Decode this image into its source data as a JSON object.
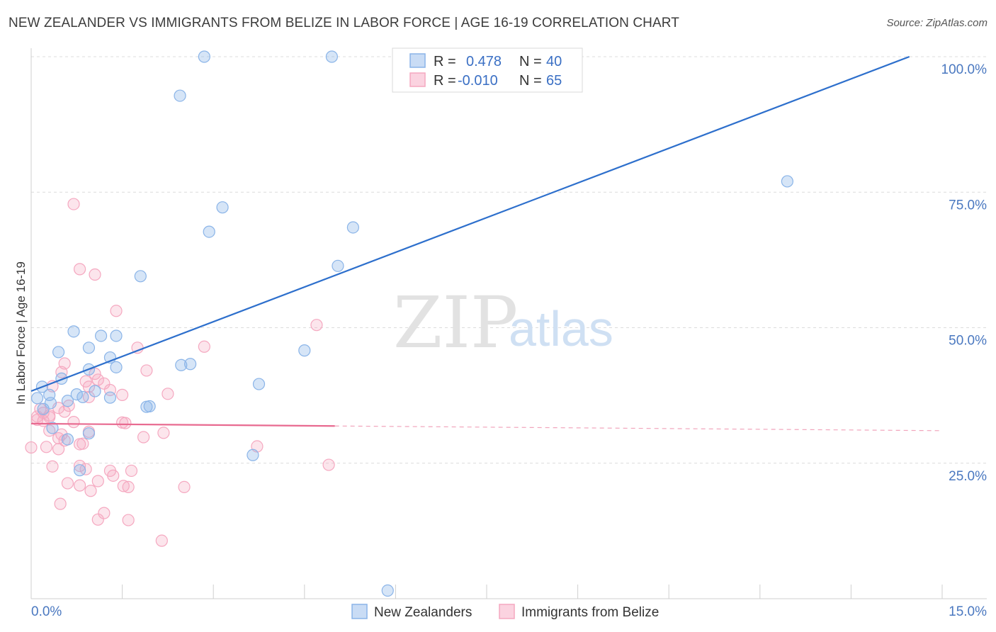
{
  "chart_data": {
    "type": "scatter",
    "title": "NEW ZEALANDER VS IMMIGRANTS FROM BELIZE IN LABOR FORCE | AGE 16-19 CORRELATION CHART",
    "source": "Source: ZipAtlas.com",
    "xlabel": "",
    "ylabel": "In Labor Force | Age 16-19",
    "xlim": [
      0,
      15
    ],
    "ylim": [
      0,
      100
    ],
    "x_tick_labels": [
      "0.0%",
      "15.0%"
    ],
    "y_ticks": [
      25,
      50,
      75,
      100
    ],
    "y_tick_labels": [
      "25.0%",
      "50.0%",
      "75.0%",
      "100.0%"
    ],
    "watermark": {
      "zip": "ZIP",
      "atlas": "atlas"
    },
    "legend": [
      {
        "r_label": "R =",
        "r_value": "0.478",
        "n_label": "N =",
        "n_value": "40"
      },
      {
        "r_label": "R =",
        "r_value": "-0.010",
        "n_label": "N =",
        "n_value": "65"
      }
    ],
    "series": [
      {
        "name": "New Zealanders",
        "color": "#8ab4e8",
        "line_color": "#2d6fcc",
        "trend": {
          "x0": 0.0,
          "y0": 38.3,
          "x1": 14.46,
          "y1": 100.0,
          "solid_until": 14.46
        },
        "points": [
          [
            2.85,
            100.0
          ],
          [
            4.95,
            100.0
          ],
          [
            2.45,
            92.8
          ],
          [
            12.45,
            77.0
          ],
          [
            3.15,
            72.2
          ],
          [
            2.93,
            67.7
          ],
          [
            5.3,
            68.5
          ],
          [
            5.05,
            61.4
          ],
          [
            1.8,
            59.5
          ],
          [
            0.7,
            49.3
          ],
          [
            1.15,
            48.5
          ],
          [
            1.4,
            48.5
          ],
          [
            0.95,
            46.3
          ],
          [
            0.45,
            45.5
          ],
          [
            1.3,
            44.5
          ],
          [
            4.5,
            45.8
          ],
          [
            2.62,
            43.3
          ],
          [
            2.47,
            43.1
          ],
          [
            0.95,
            42.3
          ],
          [
            1.4,
            42.7
          ],
          [
            0.5,
            40.6
          ],
          [
            3.75,
            39.6
          ],
          [
            0.18,
            39.1
          ],
          [
            0.3,
            37.6
          ],
          [
            0.75,
            37.7
          ],
          [
            1.05,
            38.3
          ],
          [
            0.85,
            37.2
          ],
          [
            1.3,
            37.1
          ],
          [
            0.1,
            37.0
          ],
          [
            0.32,
            36.1
          ],
          [
            1.9,
            35.4
          ],
          [
            1.95,
            35.5
          ],
          [
            0.35,
            31.5
          ],
          [
            0.95,
            30.5
          ],
          [
            0.6,
            29.4
          ],
          [
            3.65,
            26.5
          ],
          [
            0.8,
            23.7
          ],
          [
            0.2,
            35.0
          ],
          [
            0.6,
            36.5
          ],
          [
            5.87,
            1.5
          ]
        ]
      },
      {
        "name": "Immigrants from Belize",
        "color": "#f5a8c0",
        "line_color": "#e86a90",
        "trend": {
          "x0": 0.0,
          "y0": 32.3,
          "x1": 15.0,
          "y1": 31.0,
          "solid_until": 5.0
        },
        "points": [
          [
            0.7,
            72.8
          ],
          [
            0.8,
            60.8
          ],
          [
            1.05,
            59.8
          ],
          [
            1.4,
            53.1
          ],
          [
            4.7,
            50.5
          ],
          [
            1.75,
            46.3
          ],
          [
            2.85,
            46.5
          ],
          [
            0.55,
            43.4
          ],
          [
            1.9,
            42.1
          ],
          [
            0.5,
            41.8
          ],
          [
            0.9,
            40.1
          ],
          [
            1.1,
            40.4
          ],
          [
            1.05,
            41.5
          ],
          [
            0.35,
            39.2
          ],
          [
            1.2,
            39.7
          ],
          [
            0.95,
            39.1
          ],
          [
            2.25,
            37.8
          ],
          [
            1.5,
            37.6
          ],
          [
            0.95,
            37.2
          ],
          [
            0.45,
            35.2
          ],
          [
            0.55,
            34.5
          ],
          [
            0.15,
            35.0
          ],
          [
            0.1,
            33.6
          ],
          [
            0.3,
            33.5
          ],
          [
            0.1,
            33.0
          ],
          [
            0.2,
            32.8
          ],
          [
            0.7,
            32.6
          ],
          [
            1.5,
            32.5
          ],
          [
            1.55,
            32.4
          ],
          [
            0.3,
            31.0
          ],
          [
            0.5,
            30.3
          ],
          [
            0.95,
            30.8
          ],
          [
            2.18,
            30.6
          ],
          [
            1.85,
            29.8
          ],
          [
            0.45,
            29.6
          ],
          [
            0.55,
            29.2
          ],
          [
            0.8,
            28.5
          ],
          [
            0.85,
            28.6
          ],
          [
            0.25,
            28.0
          ],
          [
            0.0,
            27.9
          ],
          [
            0.45,
            27.6
          ],
          [
            3.72,
            28.1
          ],
          [
            4.9,
            24.7
          ],
          [
            0.35,
            24.4
          ],
          [
            0.9,
            23.9
          ],
          [
            1.3,
            23.6
          ],
          [
            1.65,
            23.6
          ],
          [
            1.35,
            22.7
          ],
          [
            1.1,
            21.7
          ],
          [
            0.6,
            21.3
          ],
          [
            0.8,
            20.9
          ],
          [
            1.52,
            20.8
          ],
          [
            1.6,
            20.6
          ],
          [
            2.52,
            20.6
          ],
          [
            0.98,
            19.9
          ],
          [
            0.48,
            17.5
          ],
          [
            1.2,
            15.8
          ],
          [
            1.1,
            14.6
          ],
          [
            1.6,
            14.5
          ],
          [
            2.15,
            10.7
          ],
          [
            0.2,
            34.3
          ],
          [
            0.62,
            35.6
          ],
          [
            1.3,
            38.5
          ],
          [
            0.8,
            24.5
          ],
          [
            0.3,
            33.8
          ]
        ]
      }
    ]
  }
}
